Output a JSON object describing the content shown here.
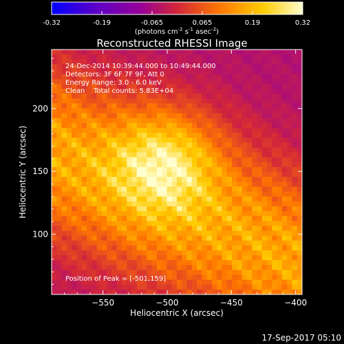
{
  "footer_date": "17-Sep-2017 05:10",
  "colorbar": {
    "ticks": [
      "-0.32",
      "-0.19",
      "-0.065",
      "0.065",
      "0.19",
      "0.32"
    ],
    "unit_main": "(photons cm",
    "unit_exp1": "-2",
    "unit_s": " s",
    "unit_exp2": "-1",
    "unit_asec": " asec",
    "unit_exp3": "-2",
    "unit_close": ")"
  },
  "chart_data": {
    "type": "heatmap",
    "title": "Reconstructed RHESSI Image",
    "xlabel": "Heliocentric X (arcsec)",
    "ylabel": "Heliocentric Y (arcsec)",
    "xlim": [
      -590,
      -395
    ],
    "ylim": [
      52,
      247
    ],
    "x_ticks": [
      -550,
      -500,
      -450,
      -400
    ],
    "y_ticks": [
      100,
      150,
      200
    ],
    "color_range": [
      -0.32,
      0.32
    ],
    "colormap": [
      "#0000ff",
      "#5a00c8",
      "#96009a",
      "#d2263a",
      "#ff7800",
      "#ffcc00",
      "#ffffd0"
    ],
    "peak": {
      "x": -501,
      "y": 159,
      "value": 0.32
    },
    "annotations": [
      "24-Dec-2014 10:39:44.000 to 10:49:44.000",
      "Detectors: 3F 6F 7F 9F, Att 0",
      "Energy Range: 3.0 - 6.0 keV",
      "Clean    Total counts: 5.83E+04"
    ],
    "peak_label": "Position of Peak = [-501,159]"
  }
}
